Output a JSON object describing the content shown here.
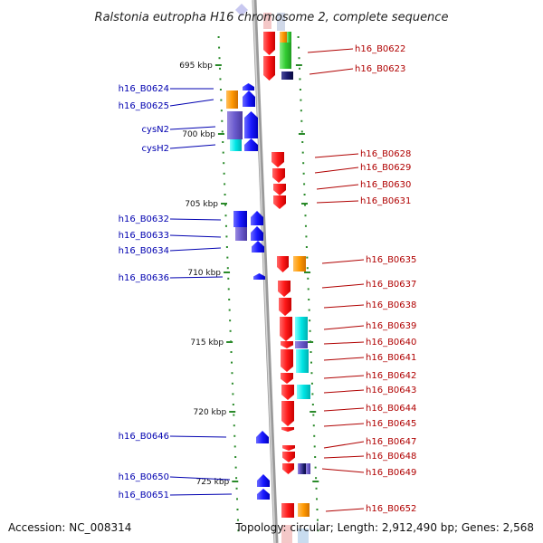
{
  "title": "Ralstonia eutropha H16 chromosome 2, complete sequence",
  "footer": {
    "accession": "Accession: NC_008314",
    "topology": "Topology: circular; Length: 2,912,490 bp; Genes: 2,568"
  },
  "colors": {
    "backbone": "#9a9a9a",
    "tick": "#2a8a2a",
    "forward_gene": "#ff1a1a",
    "reverse_gene": "#1a1aff",
    "left_label": "#0000b0",
    "right_label": "#b00000",
    "orange": "#ff9900",
    "green": "#33cc33",
    "cyan": "#00e5e5",
    "navy": "#1a1a6e",
    "lavender": "#6a5acd"
  },
  "scale_labels": [
    "695 kbp",
    "700 kbp",
    "705 kbp",
    "710 kbp",
    "715 kbp",
    "720 kbp",
    "725 kbp"
  ],
  "left_labels": [
    "h16_B0624",
    "h16_B0625",
    "cysN2",
    "cysH2",
    "h16_B0632",
    "h16_B0633",
    "h16_B0634",
    "h16_B0636",
    "h16_B0646",
    "h16_B0650",
    "h16_B0651"
  ],
  "right_labels": [
    "h16_B0622",
    "h16_B0623",
    "h16_B0628",
    "h16_B0629",
    "h16_B0630",
    "h16_B0631",
    "h16_B0635",
    "h16_B0637",
    "h16_B0638",
    "h16_B0639",
    "h16_B0640",
    "h16_B0641",
    "h16_B0642",
    "h16_B0643",
    "h16_B0644",
    "h16_B0645",
    "h16_B0647",
    "h16_B0648",
    "h16_B0649",
    "h16_B0652"
  ]
}
